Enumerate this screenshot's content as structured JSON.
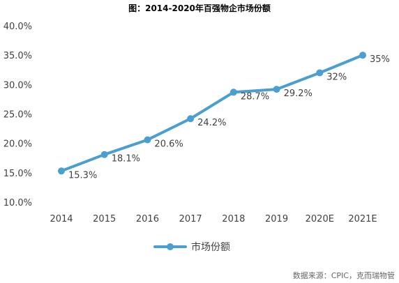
{
  "chart_data": {
    "type": "line",
    "title": "图：2014-2020年百强物企市场份额",
    "categories": [
      "2014",
      "2015",
      "2016",
      "2017",
      "2018",
      "2019",
      "2020E",
      "2021E"
    ],
    "series": [
      {
        "name": "市场份额",
        "values": [
          15.3,
          18.1,
          20.6,
          24.2,
          28.7,
          29.2,
          32,
          35
        ],
        "labels": [
          "15.3%",
          "18.1%",
          "20.6%",
          "24.2%",
          "28.7%",
          "29.2%",
          "32%",
          "35%"
        ]
      }
    ],
    "ylim": [
      10,
      40
    ],
    "yticks": [
      10,
      15,
      20,
      25,
      30,
      35,
      40
    ],
    "ytick_labels": [
      "10.0%",
      "15.0%",
      "20.0%",
      "25.0%",
      "30.0%",
      "35.0%",
      "40.0%"
    ],
    "xlabel": "",
    "ylabel": "",
    "grid": false,
    "legend": "bottom-center",
    "line_color": "#4a9fd0"
  },
  "source": "数据来源：CPIC，克而瑞物管"
}
